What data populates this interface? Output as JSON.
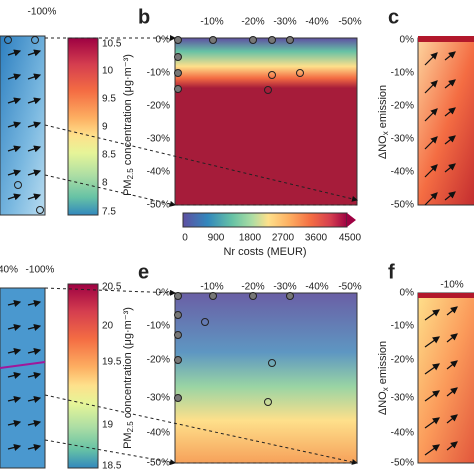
{
  "top_row": {
    "left_panel": {
      "top_ticks": [
        "-100%"
      ]
    },
    "colorbar": {
      "ticks": [
        "10.5",
        "10",
        "9.5",
        "9",
        "8.5",
        "8",
        "7.5"
      ],
      "label": {
        "main": "PM",
        "sub": "2.5",
        "rest": " concentration (μg·m⁻³)"
      }
    },
    "panel_b": {
      "label": "b",
      "top_ticks": [
        "-10%",
        "-20%",
        "-30%",
        "-40%",
        "-50%"
      ],
      "left_ticks": [
        "0%",
        "-10%",
        "-20%",
        "-30%",
        "-40%",
        "-50%"
      ]
    },
    "cost_colorbar": {
      "ticks": [
        "0",
        "900",
        "1800",
        "2700",
        "3600",
        "4500"
      ],
      "label": "Nr costs (MEUR)"
    },
    "panel_c": {
      "label": "c",
      "left_ticks": [
        "0%",
        "-10%",
        "-20%",
        "-30%",
        "-40%",
        "-50%"
      ],
      "y_label": {
        "main": "ΔNO",
        "sub": "x",
        "rest": " emission"
      }
    }
  },
  "bottom_row": {
    "left_panel": {
      "top_ticks": [
        "40%",
        "-100%"
      ]
    },
    "colorbar": {
      "ticks": [
        "20.5",
        "20",
        "19.5",
        "19",
        "18.5"
      ],
      "label": {
        "main": "PM",
        "sub": "2.5",
        "rest": " concentration (μg·m⁻³)"
      }
    },
    "panel_e": {
      "label": "e",
      "top_ticks": [
        "-10%",
        "-20%",
        "-30%",
        "-40%",
        "-50%"
      ],
      "left_ticks": [
        "0%",
        "-10%",
        "-20%",
        "-30%",
        "-40%",
        "-50%"
      ]
    },
    "panel_f": {
      "label": "f",
      "top_ticks": [
        "-10%"
      ],
      "left_ticks": [
        "0%",
        "-10%",
        "-20%",
        "-30%",
        "-40%",
        "-50%"
      ],
      "y_label": {
        "main": "ΔNO",
        "sub": "x",
        "rest": " emission"
      }
    }
  }
}
